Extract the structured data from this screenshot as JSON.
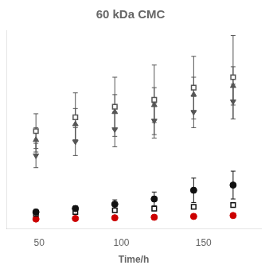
{
  "chart_data": {
    "type": "scatter",
    "title": "60 kDa CMC",
    "x_label": "Time/h",
    "x": [
      48,
      72,
      96,
      120,
      144,
      168
    ],
    "series": [
      {
        "color": "#555555",
        "marker": "square-open",
        "values": [
          0.52,
          0.6,
          0.66,
          0.7,
          0.77,
          0.83
        ],
        "errors": [
          0.1,
          0.14,
          0.17,
          0.2,
          0.18,
          0.24
        ]
      },
      {
        "color": "#555555",
        "marker": "triangle-up",
        "values": [
          0.47,
          0.56,
          0.63,
          0.67,
          0.73,
          0.78
        ],
        "errors": [
          0.07,
          0.09,
          0.1,
          0.1,
          0.1,
          0.11
        ]
      },
      {
        "color": "#555555",
        "marker": "triangle-down",
        "values": [
          0.38,
          0.46,
          0.53,
          0.58,
          0.63,
          0.69
        ],
        "errors": [
          0.07,
          0.08,
          0.1,
          0.1,
          0.09,
          0.1
        ]
      },
      {
        "color": "#111111",
        "marker": "circle",
        "values": [
          0.055,
          0.075,
          0.1,
          0.13,
          0.18,
          0.21
        ],
        "errors": [
          0.015,
          0.015,
          0.025,
          0.04,
          0.07,
          0.08
        ]
      },
      {
        "color": "#111111",
        "marker": "square-open",
        "values": [
          0.045,
          0.055,
          0.065,
          0.075,
          0.085,
          0.095
        ],
        "errors": [
          0.01,
          0.01,
          0.012,
          0.012,
          0.012,
          0.012
        ]
      },
      {
        "color": "#cc0000",
        "marker": "circle",
        "values": [
          0.015,
          0.018,
          0.022,
          0.025,
          0.03,
          0.035
        ],
        "errors": [
          0.004,
          0.004,
          0.004,
          0.004,
          0.004,
          0.004
        ]
      }
    ],
    "xlim": [
      30,
      185
    ],
    "xticks": [
      50,
      100,
      150
    ],
    "ylim": [
      -0.04,
      1.1
    ],
    "tick_labels": "x",
    "grid": false
  }
}
